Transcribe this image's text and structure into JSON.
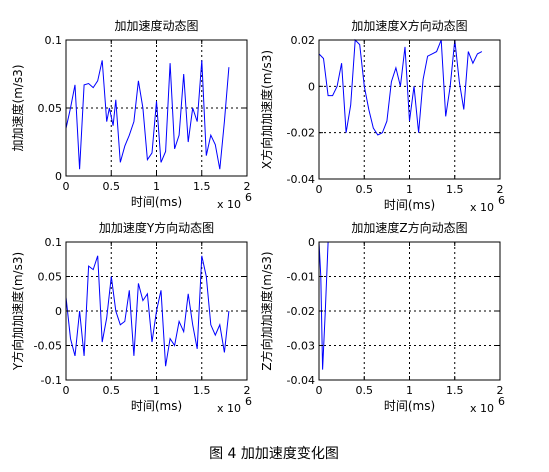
{
  "figure_caption": "图 4  加加速度变化图",
  "colors": {
    "line": "#0000ff",
    "axes": "#000000",
    "grid": "#000000",
    "background": "#ffffff"
  },
  "chart_data": [
    {
      "type": "line",
      "title": "加加速度动态图",
      "xlabel": "时间(ms)",
      "ylabel": "加加速度(m/s3)",
      "x_exponent": "x 10",
      "x_exponent_power": "6",
      "xlim": [
        0,
        2
      ],
      "ylim": [
        0,
        0.1
      ],
      "xticks": [
        "0",
        "0.5",
        "1",
        "1.5",
        "2"
      ],
      "yticks": [
        "0",
        "0.05",
        "0.1"
      ],
      "xtick_values": [
        0,
        0.5,
        1,
        1.5,
        2
      ],
      "ytick_values": [
        0,
        0.05,
        0.1
      ],
      "grid": true,
      "series": [
        {
          "x": [
            0,
            0.05,
            0.1,
            0.15,
            0.2,
            0.25,
            0.3,
            0.35,
            0.4,
            0.45,
            0.48,
            0.52,
            0.55,
            0.6,
            0.65,
            0.7,
            0.75,
            0.8,
            0.85,
            0.9,
            0.95,
            1.0,
            1.05,
            1.1,
            1.15,
            1.2,
            1.25,
            1.3,
            1.35,
            1.4,
            1.45,
            1.5,
            1.55,
            1.6,
            1.65,
            1.7,
            1.75,
            1.8
          ],
          "y": [
            0.035,
            0.05,
            0.067,
            0.005,
            0.067,
            0.068,
            0.065,
            0.07,
            0.085,
            0.04,
            0.05,
            0.037,
            0.056,
            0.01,
            0.022,
            0.03,
            0.04,
            0.07,
            0.05,
            0.012,
            0.017,
            0.055,
            0.01,
            0.018,
            0.083,
            0.02,
            0.03,
            0.075,
            0.025,
            0.05,
            0.04,
            0.085,
            0.015,
            0.03,
            0.023,
            0.005,
            0.04,
            0.08
          ]
        }
      ]
    },
    {
      "type": "line",
      "title": "加加速度X方向动态图",
      "xlabel": "时间(ms)",
      "ylabel": "X方向加加速度(m/s3)",
      "x_exponent": "x 10",
      "x_exponent_power": "6",
      "xlim": [
        0,
        2
      ],
      "ylim": [
        -0.04,
        0.02
      ],
      "xticks": [
        "0",
        "0.5",
        "1",
        "1.5",
        "2"
      ],
      "yticks": [
        "-0.04",
        "-0.02",
        "0",
        "0.02"
      ],
      "xtick_values": [
        0,
        0.5,
        1,
        1.5,
        2
      ],
      "ytick_values": [
        -0.04,
        -0.02,
        0,
        0.02
      ],
      "grid": true,
      "series": [
        {
          "x": [
            0,
            0.05,
            0.1,
            0.15,
            0.2,
            0.25,
            0.3,
            0.35,
            0.4,
            0.45,
            0.5,
            0.55,
            0.6,
            0.65,
            0.7,
            0.75,
            0.8,
            0.85,
            0.9,
            0.95,
            1.0,
            1.05,
            1.1,
            1.15,
            1.2,
            1.25,
            1.3,
            1.35,
            1.4,
            1.45,
            1.5,
            1.55,
            1.6,
            1.65,
            1.7,
            1.75,
            1.8
          ],
          "y": [
            0.014,
            0.012,
            -0.004,
            -0.004,
            0.0,
            0.01,
            -0.02,
            -0.008,
            0.02,
            0.018,
            0.0,
            -0.01,
            -0.018,
            -0.021,
            -0.02,
            -0.015,
            0.002,
            0.008,
            0.0,
            0.017,
            -0.015,
            0.0,
            -0.02,
            0.003,
            0.013,
            0.014,
            0.015,
            0.02,
            -0.013,
            0.0,
            0.02,
            0.002,
            -0.01,
            0.015,
            0.01,
            0.014,
            0.015
          ]
        }
      ]
    },
    {
      "type": "line",
      "title": "加加速度Y方向动态图",
      "xlabel": "时间(ms)",
      "ylabel": "Y方向加加速度(m/s3)",
      "x_exponent": "x 10",
      "x_exponent_power": "6",
      "xlim": [
        0,
        2
      ],
      "ylim": [
        -0.1,
        0.1
      ],
      "xticks": [
        "0",
        "0.5",
        "1",
        "1.5",
        "2"
      ],
      "yticks": [
        "-0.1",
        "-0.05",
        "0",
        "0.05",
        "0.1"
      ],
      "xtick_values": [
        0,
        0.5,
        1,
        1.5,
        2
      ],
      "ytick_values": [
        -0.1,
        -0.05,
        0,
        0.05,
        0.1
      ],
      "grid": true,
      "series": [
        {
          "x": [
            0,
            0.05,
            0.1,
            0.15,
            0.2,
            0.25,
            0.3,
            0.35,
            0.4,
            0.45,
            0.5,
            0.55,
            0.6,
            0.65,
            0.7,
            0.75,
            0.8,
            0.85,
            0.9,
            0.95,
            1.0,
            1.05,
            1.1,
            1.15,
            1.2,
            1.25,
            1.3,
            1.35,
            1.4,
            1.45,
            1.5,
            1.55,
            1.6,
            1.65,
            1.7,
            1.75,
            1.8
          ],
          "y": [
            0.02,
            -0.04,
            -0.065,
            0.0,
            -0.065,
            0.065,
            0.06,
            0.08,
            -0.045,
            -0.01,
            0.05,
            0.0,
            -0.02,
            -0.015,
            0.03,
            -0.065,
            0.04,
            0.015,
            0.025,
            -0.045,
            0.0,
            0.03,
            -0.08,
            -0.04,
            -0.05,
            -0.015,
            -0.03,
            0.025,
            -0.02,
            -0.055,
            0.08,
            0.05,
            -0.02,
            -0.035,
            -0.02,
            -0.06,
            0.0
          ]
        }
      ]
    },
    {
      "type": "line",
      "title": "加加速度Z方向动态图",
      "xlabel": "时间(ms)",
      "ylabel": "Z方向加加速度(m/s3)",
      "x_exponent": "x 10",
      "x_exponent_power": "6",
      "xlim": [
        0,
        2
      ],
      "ylim": [
        -0.04,
        0
      ],
      "xticks": [
        "0",
        "0.5",
        "1",
        "1.5",
        "2"
      ],
      "yticks": [
        "-0.04",
        "-0.03",
        "-0.02",
        "-0.01",
        "0"
      ],
      "xtick_values": [
        0,
        0.5,
        1,
        1.5,
        2
      ],
      "ytick_values": [
        -0.04,
        -0.03,
        -0.02,
        -0.01,
        0
      ],
      "grid": true,
      "series": [
        {
          "x": [
            0,
            0.02,
            0.04,
            0.07,
            0.1
          ],
          "y": [
            0.0,
            -0.01,
            -0.037,
            -0.02,
            0.0
          ]
        }
      ]
    }
  ]
}
